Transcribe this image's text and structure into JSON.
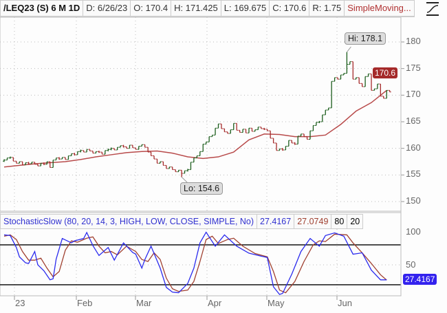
{
  "header": {
    "symbol": "/LEQ23 (S) 6 M 1D",
    "date": "D: 6/26/23",
    "open": "O: 170.4",
    "high": "H: 171.425",
    "low": "L: 169.675",
    "close": "C: 170.6",
    "range": "R: 1.75",
    "study": "SimpleMoving...",
    "style_icon": "line-style-icon"
  },
  "colors": {
    "up": "#1a5c1a",
    "down": "#a52a2a",
    "ma": "#b84a4a",
    "stoch_k": "#2a2aee",
    "stoch_d": "#a04030",
    "badge_price": "#a52a2a",
    "badge_stoch": "#3322ee"
  },
  "price_axis": {
    "ticks": [
      "180",
      "175",
      "170",
      "165",
      "160",
      "155",
      "150"
    ],
    "last": "170.6"
  },
  "callouts": {
    "hi": "Hi: 178.1",
    "lo": "Lo: 154.6"
  },
  "stoch": {
    "title": "StochasticSlow (80, 20, 14, 3, HIGH, LOW, CLOSE, SIMPLE, No)",
    "k_value": "27.4167",
    "d_value": "27.0749",
    "over": "80",
    "under": "20",
    "ticks": [
      "100",
      "50"
    ],
    "badge": "27.4167"
  },
  "date_axis": [
    "23",
    "Feb",
    "Mar",
    "Apr",
    "May",
    "Jun"
  ],
  "chart_data": {
    "type": "bar",
    "first_open": 157.6,
    "closes": [
      157.8,
      158.2,
      158.3,
      157.6,
      157.2,
      157.5,
      156.9,
      157.3,
      157.1,
      157.4,
      157.0,
      156.7,
      157.2,
      157.0,
      157.5,
      156.4,
      157.8,
      158.2,
      158.0,
      158.3,
      157.9,
      158.6,
      159.0,
      158.8,
      159.4,
      159.6,
      159.3,
      159.8,
      159.5,
      159.1,
      159.4,
      159.3,
      158.9,
      159.6,
      159.8,
      160.0,
      159.7,
      160.2,
      160.5,
      160.3,
      160.0,
      160.6,
      160.1,
      159.8,
      160.4,
      160.7,
      160.2,
      159.3,
      158.6,
      158.0,
      157.2,
      157.5,
      156.8,
      156.2,
      156.5,
      156.0,
      155.6,
      155.9,
      155.3,
      155.8,
      156.0,
      157.4,
      158.2,
      158.6,
      159.4,
      160.8,
      161.2,
      162.2,
      162.5,
      163.8,
      164.6,
      163.7,
      163.1,
      162.8,
      163.5,
      164.7,
      163.4,
      163.0,
      163.6,
      162.9,
      163.8,
      163.2,
      163.5,
      164.0,
      163.7,
      163.6,
      163.3,
      161.9,
      161.0,
      159.6,
      159.9,
      159.7,
      160.4,
      161.5,
      161.0,
      160.8,
      162.3,
      162.7,
      162.2,
      161.7,
      163.3,
      164.3,
      164.9,
      165.0,
      166.3,
      167.2,
      167.6,
      172.6,
      173.3,
      173.0,
      173.8,
      174.1,
      175.8,
      176.3,
      173.0,
      173.3,
      172.2,
      171.6,
      173.5,
      174.0,
      170.9,
      171.2,
      172.1,
      169.8,
      169.4,
      170.9,
      170.6
    ],
    "hi": {
      "bar": 112,
      "value": 178.1
    },
    "lo": {
      "bar": 58,
      "value": 154.6
    },
    "moving_average_every5": [
      156.5,
      156.8,
      157.1,
      157.3,
      157.5,
      157.9,
      158.4,
      158.8,
      159.2,
      159.4,
      159.5,
      159.1,
      158.4,
      158.1,
      158.4,
      159.3,
      161.6,
      162.7,
      162.6,
      162.2,
      162.2,
      162.5,
      164.5,
      167.0,
      168.6,
      170.9
    ],
    "ylim": [
      148,
      183
    ],
    "stoch_k": [
      [
        0,
        95
      ],
      [
        2,
        94
      ],
      [
        4,
        76
      ],
      [
        5,
        62
      ],
      [
        7,
        53
      ],
      [
        8,
        52
      ],
      [
        10,
        70
      ],
      [
        11,
        50
      ],
      [
        13,
        41
      ],
      [
        15,
        27.5
      ],
      [
        16,
        29
      ],
      [
        17,
        58.6
      ],
      [
        19,
        89.6
      ],
      [
        22,
        83
      ],
      [
        23,
        86
      ],
      [
        26,
        89.6
      ],
      [
        27,
        98.6
      ],
      [
        29,
        79
      ],
      [
        31,
        64
      ],
      [
        34,
        76
      ],
      [
        36,
        57
      ],
      [
        39,
        83
      ],
      [
        42,
        68.6
      ],
      [
        43,
        66
      ],
      [
        45,
        45
      ],
      [
        46,
        58
      ],
      [
        48,
        78
      ],
      [
        51,
        45
      ],
      [
        53,
        16
      ],
      [
        55,
        9
      ],
      [
        57,
        8
      ],
      [
        60,
        22
      ],
      [
        62,
        45
      ],
      [
        64,
        83
      ],
      [
        66,
        99
      ],
      [
        69,
        78
      ],
      [
        72,
        95
      ],
      [
        76,
        78
      ],
      [
        80,
        67.5
      ],
      [
        84,
        63
      ],
      [
        86,
        61
      ],
      [
        88,
        17
      ],
      [
        90,
        5.5
      ],
      [
        91,
        7
      ],
      [
        94,
        36
      ],
      [
        97,
        70
      ],
      [
        100,
        89.6
      ],
      [
        103,
        78
      ],
      [
        105,
        94
      ],
      [
        108,
        98
      ],
      [
        111,
        93
      ],
      [
        114,
        66
      ],
      [
        117,
        68
      ],
      [
        120,
        42
      ],
      [
        123,
        27.4
      ],
      [
        125,
        27.4
      ]
    ],
    "stoch_d": [
      [
        0,
        93
      ],
      [
        2,
        95
      ],
      [
        4,
        88
      ],
      [
        6,
        70
      ],
      [
        8,
        57
      ],
      [
        10,
        57
      ],
      [
        12,
        60
      ],
      [
        14,
        45
      ],
      [
        16,
        32
      ],
      [
        18,
        40
      ],
      [
        20,
        72
      ],
      [
        22,
        86
      ],
      [
        24,
        84
      ],
      [
        27,
        90
      ],
      [
        29,
        92
      ],
      [
        31,
        78
      ],
      [
        33,
        68
      ],
      [
        35,
        70
      ],
      [
        37,
        65
      ],
      [
        40,
        78
      ],
      [
        43,
        70
      ],
      [
        45,
        58
      ],
      [
        47,
        55
      ],
      [
        49,
        68
      ],
      [
        51,
        58
      ],
      [
        53,
        30
      ],
      [
        55,
        14
      ],
      [
        57,
        10
      ],
      [
        60,
        12
      ],
      [
        62,
        25
      ],
      [
        64,
        55
      ],
      [
        66,
        88
      ],
      [
        68,
        93
      ],
      [
        70,
        82
      ],
      [
        73,
        88
      ],
      [
        75,
        90
      ],
      [
        78,
        78
      ],
      [
        82,
        67
      ],
      [
        86,
        62
      ],
      [
        88,
        40
      ],
      [
        90,
        12
      ],
      [
        92,
        8
      ],
      [
        95,
        25
      ],
      [
        98,
        55
      ],
      [
        101,
        80
      ],
      [
        103,
        86
      ],
      [
        105,
        85
      ],
      [
        108,
        96
      ],
      [
        112,
        95
      ],
      [
        114,
        83
      ],
      [
        117,
        68
      ],
      [
        120,
        52
      ],
      [
        123,
        35
      ],
      [
        125,
        27.1
      ]
    ]
  }
}
